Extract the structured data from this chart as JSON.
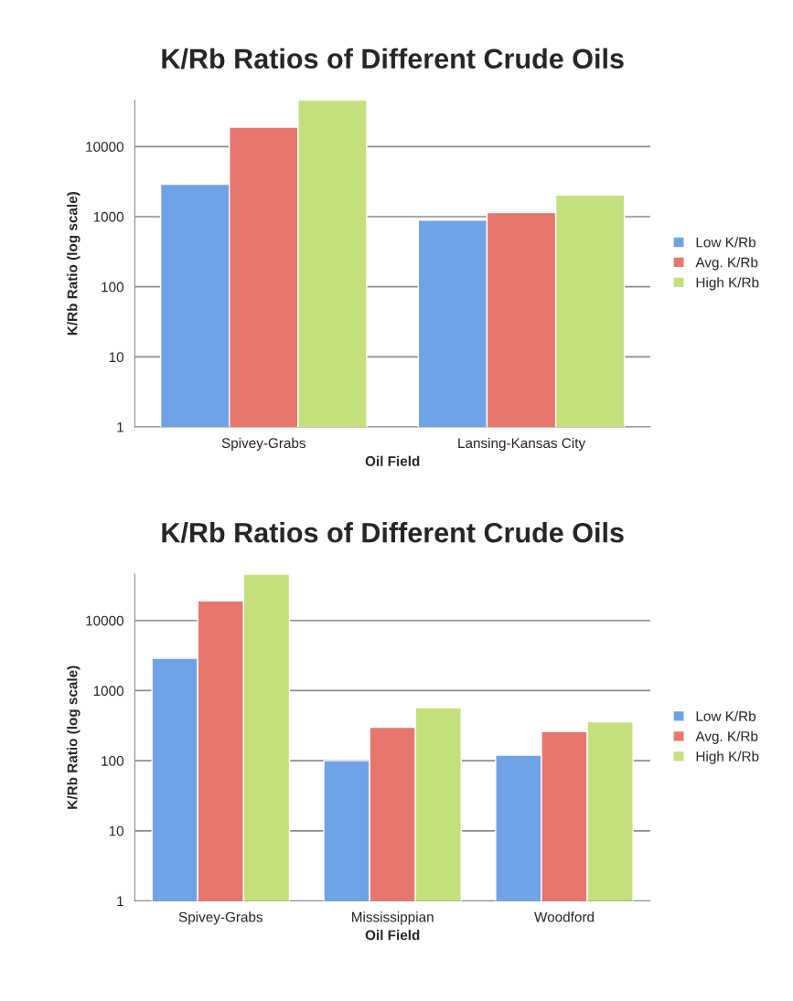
{
  "chart_data": [
    {
      "type": "bar",
      "title": "K/Rb Ratios of Different Crude Oils",
      "xlabel": "Oil Field",
      "ylabel": "K/Rb Ratio (log scale)",
      "categories": [
        "Spivey-Grabs",
        "Lansing-Kansas City"
      ],
      "series": [
        {
          "name": "Low K/Rb",
          "color": "#6fa3e6",
          "values": [
            2900,
            890
          ]
        },
        {
          "name": "Avg. K/Rb",
          "color": "#e8766d",
          "values": [
            19000,
            1140
          ]
        },
        {
          "name": "High K/Rb",
          "color": "#c4e07e",
          "values": [
            46000,
            2040
          ]
        }
      ],
      "log": true,
      "ylim": [
        1,
        46000
      ],
      "yticks": [
        1,
        10,
        100,
        1000,
        10000
      ],
      "grid": "y",
      "legend": "right"
    },
    {
      "type": "bar",
      "title": "K/Rb Ratios of Different Crude Oils",
      "xlabel": "Oil Field",
      "ylabel": "K/Rb Ratio (log scale)",
      "categories": [
        "Spivey-Grabs",
        "Mississippian",
        "Woodford"
      ],
      "series": [
        {
          "name": "Low K/Rb",
          "color": "#6fa3e6",
          "values": [
            2900,
            100,
            120
          ]
        },
        {
          "name": "Avg. K/Rb",
          "color": "#e8766d",
          "values": [
            19000,
            300,
            260
          ]
        },
        {
          "name": "High K/Rb",
          "color": "#c4e07e",
          "values": [
            46000,
            570,
            360
          ]
        }
      ],
      "log": true,
      "ylim": [
        1,
        46000
      ],
      "yticks": [
        1,
        10,
        100,
        1000,
        10000
      ],
      "grid": "y",
      "legend": "right"
    }
  ]
}
